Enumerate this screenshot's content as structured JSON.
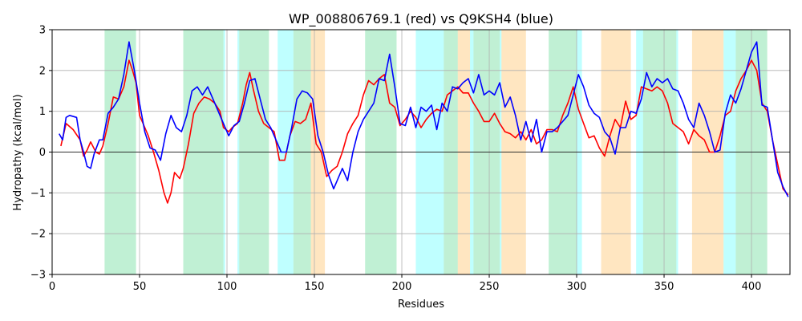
{
  "chart_data": {
    "type": "line",
    "title": "WP_008806769.1 (red) vs Q9KSH4 (blue)",
    "xlabel": "Residues",
    "ylabel": "Hydropathy (kcal/mol)",
    "xlim": [
      0,
      422
    ],
    "ylim": [
      -3,
      3
    ],
    "xticks": [
      0,
      50,
      100,
      150,
      200,
      250,
      300,
      350,
      400
    ],
    "yticks": [
      -3,
      -2,
      -1,
      0,
      1,
      2,
      3
    ],
    "grid": true,
    "reference_line_y": 0,
    "colors": {
      "red_series": "#ff0000",
      "blue_series": "#0000ff",
      "green_band": "#2ecc71",
      "cyan_band": "#00ffff",
      "orange_band": "#ffb74d"
    },
    "regions": [
      {
        "start": 30,
        "end": 48,
        "color": "green"
      },
      {
        "start": 75,
        "end": 98,
        "color": "green"
      },
      {
        "start": 98,
        "end": 99,
        "color": "cyan"
      },
      {
        "start": 106,
        "end": 107,
        "color": "cyan"
      },
      {
        "start": 107,
        "end": 124,
        "color": "green"
      },
      {
        "start": 129,
        "end": 138,
        "color": "cyan"
      },
      {
        "start": 138,
        "end": 148,
        "color": "green"
      },
      {
        "start": 148,
        "end": 156,
        "color": "orange"
      },
      {
        "start": 179,
        "end": 197,
        "color": "green"
      },
      {
        "start": 208,
        "end": 224,
        "color": "cyan"
      },
      {
        "start": 224,
        "end": 232,
        "color": "green"
      },
      {
        "start": 232,
        "end": 239,
        "color": "orange"
      },
      {
        "start": 239,
        "end": 241,
        "color": "cyan"
      },
      {
        "start": 241,
        "end": 256,
        "color": "green"
      },
      {
        "start": 256,
        "end": 257,
        "color": "cyan"
      },
      {
        "start": 257,
        "end": 271,
        "color": "orange"
      },
      {
        "start": 284,
        "end": 300,
        "color": "green"
      },
      {
        "start": 300,
        "end": 303,
        "color": "cyan"
      },
      {
        "start": 314,
        "end": 331,
        "color": "orange"
      },
      {
        "start": 334,
        "end": 338,
        "color": "cyan"
      },
      {
        "start": 338,
        "end": 357,
        "color": "green"
      },
      {
        "start": 357,
        "end": 358,
        "color": "cyan"
      },
      {
        "start": 366,
        "end": 384,
        "color": "orange"
      },
      {
        "start": 384,
        "end": 391,
        "color": "cyan"
      },
      {
        "start": 391,
        "end": 409,
        "color": "green"
      }
    ],
    "series": [
      {
        "color": "red",
        "x": [
          5,
          8,
          12,
          16,
          18,
          20,
          22,
          25,
          27,
          29,
          32,
          35,
          38,
          41,
          44,
          46,
          48,
          50,
          52,
          55,
          58,
          61,
          64,
          66,
          68,
          70,
          73,
          75,
          78,
          81,
          84,
          87,
          90,
          93,
          96,
          98,
          101,
          103,
          106,
          109,
          111,
          113,
          115,
          118,
          121,
          124,
          127,
          130,
          133,
          136,
          139,
          142,
          145,
          148,
          151,
          154,
          157,
          160,
          163,
          166,
          169,
          172,
          175,
          178,
          181,
          184,
          187,
          190,
          193,
          196,
          199,
          202,
          205,
          208,
          211,
          214,
          217,
          220,
          223,
          226,
          229,
          232,
          235,
          238,
          241,
          244,
          247,
          250,
          253,
          256,
          259,
          262,
          265,
          268,
          271,
          274,
          277,
          280,
          283,
          286,
          289,
          292,
          295,
          298,
          301,
          304,
          307,
          310,
          313,
          316,
          319,
          322,
          325,
          328,
          331,
          334,
          337,
          340,
          343,
          346,
          349,
          352,
          355,
          358,
          361,
          364,
          367,
          370,
          373,
          376,
          379,
          382,
          385,
          388,
          391,
          394,
          397,
          400,
          403,
          406,
          409,
          412,
          415,
          418,
          421
        ],
        "y": [
          0.15,
          0.7,
          0.55,
          0.3,
          -0.1,
          0.05,
          0.25,
          0.0,
          -0.05,
          0.15,
          0.7,
          1.35,
          1.3,
          1.6,
          2.25,
          2.0,
          1.7,
          0.9,
          0.7,
          0.4,
          0.0,
          -0.45,
          -1.0,
          -1.25,
          -1.0,
          -0.5,
          -0.65,
          -0.4,
          0.2,
          0.95,
          1.2,
          1.35,
          1.3,
          1.2,
          1.0,
          0.6,
          0.5,
          0.6,
          0.7,
          1.2,
          1.65,
          1.95,
          1.55,
          1.0,
          0.7,
          0.6,
          0.5,
          -0.2,
          -0.2,
          0.4,
          0.75,
          0.7,
          0.8,
          1.2,
          0.2,
          0.0,
          -0.6,
          -0.45,
          -0.35,
          0.0,
          0.45,
          0.7,
          0.9,
          1.4,
          1.75,
          1.65,
          1.8,
          1.9,
          1.2,
          1.1,
          0.65,
          0.8,
          1.0,
          0.85,
          0.6,
          0.8,
          0.95,
          1.05,
          1.0,
          1.4,
          1.5,
          1.6,
          1.45,
          1.45,
          1.2,
          1.0,
          0.75,
          0.75,
          0.95,
          0.7,
          0.5,
          0.45,
          0.35,
          0.5,
          0.3,
          0.55,
          0.2,
          0.3,
          0.55,
          0.55,
          0.5,
          0.9,
          1.2,
          1.6,
          1.05,
          0.7,
          0.35,
          0.4,
          0.1,
          -0.1,
          0.4,
          0.8,
          0.6,
          1.25,
          0.8,
          0.9,
          1.6,
          1.55,
          1.5,
          1.6,
          1.5,
          1.2,
          0.7,
          0.6,
          0.5,
          0.2,
          0.55,
          0.4,
          0.3,
          0.0,
          0.0,
          0.4,
          0.9,
          1.0,
          1.5,
          1.8,
          2.0,
          2.25,
          2.0,
          1.2,
          1.0,
          0.3,
          -0.3,
          -0.9,
          -1.05
        ]
      },
      {
        "color": "blue",
        "x": [
          4,
          6,
          8,
          10,
          14,
          16,
          18,
          20,
          22,
          24,
          27,
          29,
          32,
          35,
          38,
          41,
          44,
          47,
          50,
          53,
          56,
          59,
          62,
          65,
          68,
          71,
          74,
          77,
          80,
          83,
          86,
          89,
          92,
          95,
          98,
          101,
          104,
          107,
          110,
          113,
          116,
          119,
          122,
          125,
          128,
          131,
          134,
          137,
          140,
          143,
          146,
          149,
          152,
          155,
          158,
          161,
          163,
          166,
          169,
          172,
          175,
          178,
          181,
          184,
          187,
          190,
          193,
          196,
          199,
          202,
          205,
          208,
          211,
          214,
          217,
          220,
          223,
          226,
          229,
          232,
          235,
          238,
          241,
          244,
          247,
          250,
          253,
          256,
          259,
          262,
          265,
          268,
          271,
          274,
          277,
          280,
          283,
          286,
          289,
          292,
          295,
          298,
          301,
          304,
          307,
          310,
          313,
          316,
          319,
          322,
          325,
          328,
          331,
          334,
          337,
          340,
          343,
          346,
          349,
          352,
          355,
          358,
          361,
          364,
          367,
          370,
          373,
          376,
          379,
          382,
          385,
          388,
          391,
          394,
          397,
          400,
          403,
          406,
          409,
          412,
          415,
          418,
          421
        ],
        "y": [
          0.45,
          0.3,
          0.85,
          0.9,
          0.85,
          0.3,
          0.0,
          -0.35,
          -0.4,
          -0.05,
          0.3,
          0.3,
          0.95,
          1.1,
          1.3,
          1.9,
          2.7,
          2.0,
          1.2,
          0.5,
          0.1,
          0.05,
          -0.2,
          0.45,
          0.9,
          0.6,
          0.5,
          0.9,
          1.5,
          1.6,
          1.4,
          1.6,
          1.3,
          1.0,
          0.7,
          0.4,
          0.65,
          0.75,
          1.2,
          1.75,
          1.8,
          1.3,
          0.8,
          0.6,
          0.3,
          0.0,
          0.0,
          0.6,
          1.3,
          1.5,
          1.45,
          1.3,
          0.4,
          0.0,
          -0.55,
          -0.9,
          -0.7,
          -0.4,
          -0.7,
          0.0,
          0.5,
          0.8,
          1.0,
          1.2,
          1.8,
          1.75,
          2.4,
          1.6,
          0.7,
          0.65,
          1.1,
          0.6,
          1.1,
          1.0,
          1.15,
          0.55,
          1.2,
          1.0,
          1.6,
          1.55,
          1.7,
          1.8,
          1.45,
          1.9,
          1.4,
          1.5,
          1.4,
          1.7,
          1.1,
          1.35,
          0.9,
          0.3,
          0.75,
          0.25,
          0.8,
          0.0,
          0.5,
          0.5,
          0.6,
          0.75,
          0.9,
          1.4,
          1.9,
          1.6,
          1.15,
          0.95,
          0.85,
          0.5,
          0.35,
          -0.05,
          0.6,
          0.6,
          1.0,
          0.95,
          1.3,
          1.95,
          1.6,
          1.8,
          1.7,
          1.8,
          1.55,
          1.5,
          1.2,
          0.8,
          0.6,
          1.2,
          0.9,
          0.5,
          0.0,
          0.05,
          0.95,
          1.4,
          1.2,
          1.55,
          2.0,
          2.45,
          2.7,
          1.15,
          1.1,
          0.3,
          -0.5,
          -0.85,
          -1.1
        ]
      }
    ]
  }
}
